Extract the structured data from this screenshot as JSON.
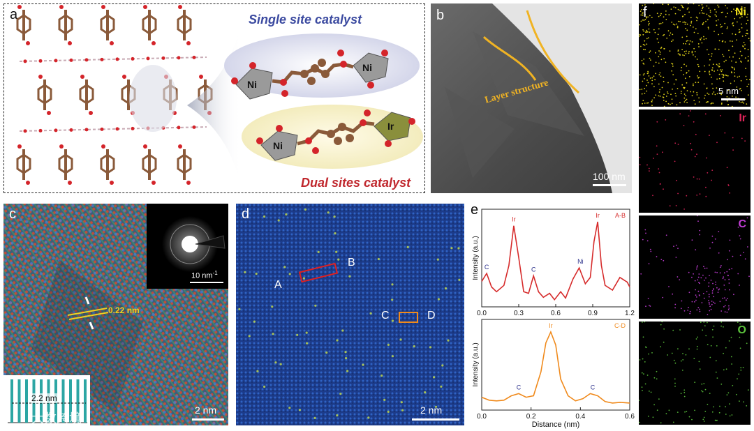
{
  "panel_a": {
    "label": "a",
    "single_title": "Single site catalyst",
    "dual_title": "Dual sites catalyst",
    "metal_ni": "Ni",
    "metal_ir": "Ir",
    "colors": {
      "single_title": "#3b4aa0",
      "dual_title": "#c0272d",
      "bond": "#8a5a3a",
      "oxygen": "#d4242a"
    }
  },
  "panel_b": {
    "label": "b",
    "annotation": "Layer structure",
    "scale": "100 nm",
    "colors": {
      "annotation": "#f0b323"
    }
  },
  "panel_c": {
    "label": "c",
    "d_spacing": "0.22 nm",
    "inset_scale": "10 nm",
    "inset_scale_exponent": "-1",
    "profile_label": "2.2 nm",
    "scale": "2 nm",
    "watermark": "大数跨境"
  },
  "panel_d": {
    "label": "d",
    "point_a": "A",
    "point_b": "B",
    "point_c": "C",
    "point_d": "D",
    "scale": "2 nm"
  },
  "panel_e": {
    "label": "e",
    "top_tag": "A-B",
    "bottom_tag": "C-D",
    "ylabel": "Intensity (a.u.)",
    "xlabel": "Distance (nm)",
    "peak_ir": "Ir",
    "peak_c": "C",
    "peak_ni": "Ni"
  },
  "panel_f": {
    "label": "f",
    "scale": "5 nm",
    "maps": [
      {
        "element": "Ni",
        "color": "#f2e21c"
      },
      {
        "element": "Ir",
        "color": "#e0245a"
      },
      {
        "element": "C",
        "color": "#c23dd6"
      },
      {
        "element": "O",
        "color": "#5cc43c"
      }
    ]
  },
  "chart_data": [
    {
      "type": "line",
      "tag": "A-B",
      "xlabel": "",
      "ylabel": "Intensity (a.u.)",
      "xlim": [
        0,
        1.2
      ],
      "xticks": [
        0.0,
        0.3,
        0.6,
        0.9,
        1.2
      ],
      "color": "#d62b2b",
      "x": [
        0,
        0.04,
        0.08,
        0.12,
        0.18,
        0.22,
        0.26,
        0.3,
        0.34,
        0.38,
        0.42,
        0.46,
        0.5,
        0.55,
        0.59,
        0.64,
        0.68,
        0.74,
        0.79,
        0.84,
        0.88,
        0.91,
        0.94,
        0.97,
        1.0,
        1.06,
        1.12,
        1.18,
        1.2
      ],
      "y": [
        0.25,
        0.35,
        0.18,
        0.12,
        0.2,
        0.45,
        0.95,
        0.55,
        0.12,
        0.1,
        0.32,
        0.12,
        0.05,
        0.1,
        0.02,
        0.12,
        0.04,
        0.28,
        0.42,
        0.22,
        0.3,
        0.75,
        1.0,
        0.45,
        0.2,
        0.14,
        0.3,
        0.24,
        0.18
      ],
      "annotations": [
        {
          "label": "C",
          "x": 0.04
        },
        {
          "label": "Ir",
          "x": 0.26
        },
        {
          "label": "C",
          "x": 0.42
        },
        {
          "label": "Ni",
          "x": 0.8
        },
        {
          "label": "Ir",
          "x": 0.94
        }
      ]
    },
    {
      "type": "line",
      "tag": "C-D",
      "xlabel": "Distance (nm)",
      "ylabel": "Intensity (a.u.)",
      "xlim": [
        0,
        0.6
      ],
      "xticks": [
        0.0,
        0.2,
        0.4,
        0.6
      ],
      "color": "#f08a1c",
      "x": [
        0,
        0.03,
        0.06,
        0.09,
        0.12,
        0.15,
        0.18,
        0.21,
        0.24,
        0.26,
        0.28,
        0.3,
        0.32,
        0.35,
        0.38,
        0.41,
        0.44,
        0.47,
        0.5,
        0.53,
        0.56,
        0.6
      ],
      "y": [
        0.1,
        0.06,
        0.05,
        0.06,
        0.12,
        0.15,
        0.1,
        0.12,
        0.45,
        0.85,
        1.0,
        0.82,
        0.35,
        0.12,
        0.05,
        0.08,
        0.15,
        0.12,
        0.04,
        0.02,
        0.03,
        0.02
      ],
      "annotations": [
        {
          "label": "Ir",
          "x": 0.28
        },
        {
          "label": "C",
          "x": 0.15
        },
        {
          "label": "C",
          "x": 0.45
        }
      ]
    }
  ]
}
